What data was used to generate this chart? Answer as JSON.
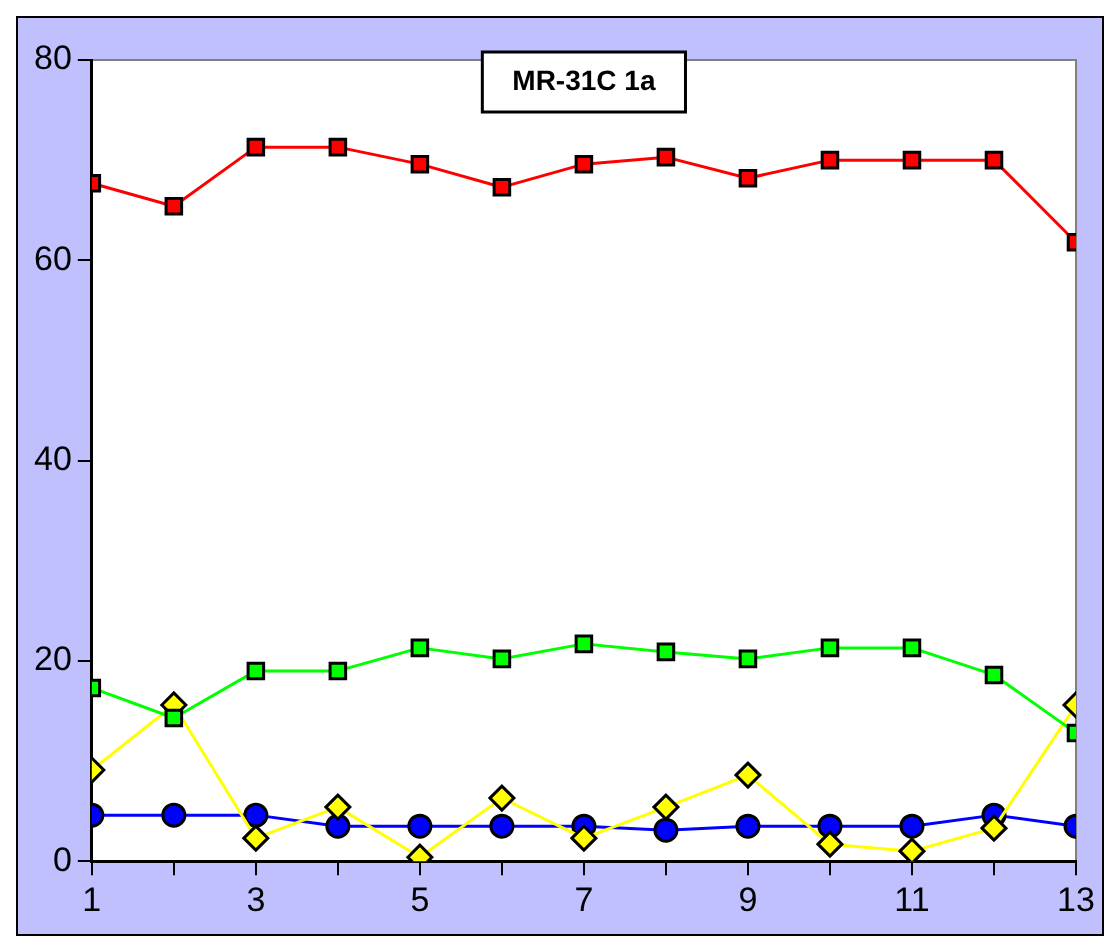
{
  "chart_data": {
    "type": "line",
    "title": "MR-31C 1a",
    "x": [
      1,
      2,
      3,
      4,
      5,
      6,
      7,
      8,
      9,
      10,
      11,
      12,
      13
    ],
    "series": [
      {
        "color": "#ff0000",
        "marker": "square",
        "values": [
          67.7,
          65.4,
          71.3,
          71.3,
          69.6,
          67.3,
          69.6,
          70.3,
          68.2,
          70.0,
          70.0,
          70.0,
          61.8
        ]
      },
      {
        "color": "#00ff00",
        "marker": "square",
        "values": [
          17.3,
          14.3,
          19.0,
          19.0,
          21.3,
          20.2,
          21.7,
          20.9,
          20.2,
          21.3,
          21.3,
          18.6,
          12.8
        ]
      },
      {
        "color": "#ffff00",
        "marker": "diamond",
        "values": [
          9.1,
          15.6,
          2.3,
          5.4,
          0.4,
          6.3,
          2.3,
          5.4,
          8.6,
          1.7,
          1.0,
          3.3,
          15.6
        ]
      },
      {
        "color": "#0000ff",
        "marker": "circle",
        "values": [
          4.6,
          4.6,
          4.6,
          3.5,
          3.5,
          3.5,
          3.5,
          3.1,
          3.5,
          3.5,
          3.5,
          4.6,
          3.5
        ]
      }
    ],
    "xlim": [
      1,
      13
    ],
    "xticks": [
      1,
      {
        "value": 2,
        "label": null
      },
      3,
      {
        "value": 4,
        "label": null
      },
      5,
      {
        "value": 6,
        "label": null
      },
      7,
      {
        "value": 8,
        "label": null
      },
      9,
      {
        "value": 10,
        "label": null
      },
      11,
      {
        "value": 12,
        "label": null
      },
      13
    ],
    "ylim": [
      0,
      80
    ],
    "yticks": [
      0,
      20,
      40,
      60,
      80
    ],
    "grid": false,
    "legend": false,
    "line_style": "solid"
  }
}
